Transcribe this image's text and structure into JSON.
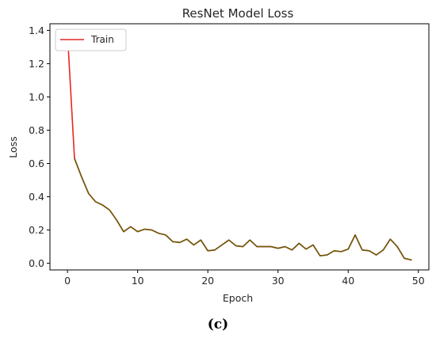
{
  "chart_data": {
    "type": "line",
    "title": "ResNet Model Loss",
    "xlabel": "Epoch",
    "ylabel": "Loss",
    "xlim": [
      -2.5,
      51.5
    ],
    "ylim": [
      -0.04,
      1.44
    ],
    "xticks": [
      0,
      10,
      20,
      30,
      40,
      50
    ],
    "yticks": [
      0.0,
      0.2,
      0.4,
      0.6,
      0.8,
      1.0,
      1.2,
      1.4
    ],
    "ytick_labels": [
      "0.0",
      "0.2",
      "0.4",
      "0.6",
      "0.8",
      "1.0",
      "1.2",
      "1.4"
    ],
    "grid": false,
    "legend": {
      "placement": "top-left"
    },
    "series": [
      {
        "name": "Train",
        "color": "#e8261f",
        "x": [
          0,
          1,
          2,
          3,
          4,
          5,
          6,
          7,
          8,
          9,
          10,
          11,
          12,
          13,
          14,
          15,
          16,
          17,
          18,
          19,
          20,
          21,
          22,
          23,
          24,
          25,
          26,
          27,
          28,
          29,
          30,
          31,
          32,
          33,
          34,
          35,
          36,
          37,
          38,
          39,
          40,
          41,
          42,
          43,
          44,
          45,
          46,
          47,
          48,
          49
        ],
        "values": [
          1.38,
          0.63,
          0.52,
          0.42,
          0.37,
          0.35,
          0.32,
          0.26,
          0.19,
          0.22,
          0.19,
          0.205,
          0.2,
          0.18,
          0.17,
          0.13,
          0.125,
          0.145,
          0.11,
          0.14,
          0.075,
          0.08,
          0.11,
          0.14,
          0.105,
          0.1,
          0.14,
          0.1,
          0.1,
          0.1,
          0.09,
          0.1,
          0.08,
          0.12,
          0.085,
          0.11,
          0.045,
          0.05,
          0.075,
          0.07,
          0.085,
          0.17,
          0.08,
          0.075,
          0.05,
          0.08,
          0.145,
          0.1,
          0.03,
          0.02
        ]
      },
      {
        "color": "#6b5a0a",
        "x": [
          1,
          2,
          3,
          4,
          5,
          6,
          7,
          8,
          9,
          10,
          11,
          12,
          13,
          14,
          15,
          16,
          17,
          18,
          19,
          20,
          21,
          22,
          23,
          24,
          25,
          26,
          27,
          28,
          29,
          30,
          31,
          32,
          33,
          34,
          35,
          36,
          37,
          38,
          39,
          40,
          41,
          42,
          43,
          44,
          45,
          46,
          47,
          48,
          49
        ],
        "values": [
          0.63,
          0.52,
          0.42,
          0.37,
          0.35,
          0.32,
          0.26,
          0.19,
          0.22,
          0.19,
          0.205,
          0.2,
          0.18,
          0.17,
          0.13,
          0.125,
          0.145,
          0.11,
          0.14,
          0.075,
          0.08,
          0.11,
          0.14,
          0.105,
          0.1,
          0.14,
          0.1,
          0.1,
          0.1,
          0.09,
          0.1,
          0.08,
          0.12,
          0.085,
          0.11,
          0.045,
          0.05,
          0.075,
          0.07,
          0.085,
          0.17,
          0.08,
          0.075,
          0.05,
          0.08,
          0.145,
          0.1,
          0.03,
          0.02
        ]
      }
    ]
  },
  "caption": "(c)"
}
